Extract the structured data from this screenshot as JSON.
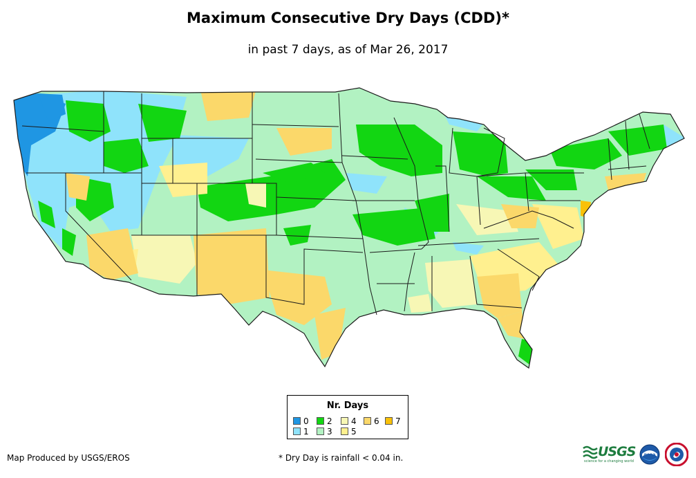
{
  "header": {
    "title": "Maximum Consecutive Dry Days (CDD)*",
    "subtitle": "in past 7 days, as of Mar 26, 2017"
  },
  "legend": {
    "title": "Nr. Days",
    "items": [
      {
        "label": "0",
        "color": "#1f96e3"
      },
      {
        "label": "1",
        "color": "#8fe3fb"
      },
      {
        "label": "2",
        "color": "#12d612"
      },
      {
        "label": "3",
        "color": "#b2f2c2"
      },
      {
        "label": "4",
        "color": "#f7f7b5"
      },
      {
        "label": "5",
        "color": "#fff08f"
      },
      {
        "label": "6",
        "color": "#fbd86a"
      },
      {
        "label": "7",
        "color": "#f9c109"
      }
    ]
  },
  "footer": {
    "credit": "Map Produced by USGS/EROS",
    "footnote": "* Dry Day is rainfall < 0.04 in."
  },
  "logos": {
    "usgs": "USGS",
    "usgs_tagline": "science for a changing world",
    "noaa": "noaa"
  },
  "colors": {
    "land_base": "#b2f2c2",
    "state_border": "#1a1a1a",
    "text": "#000000"
  }
}
